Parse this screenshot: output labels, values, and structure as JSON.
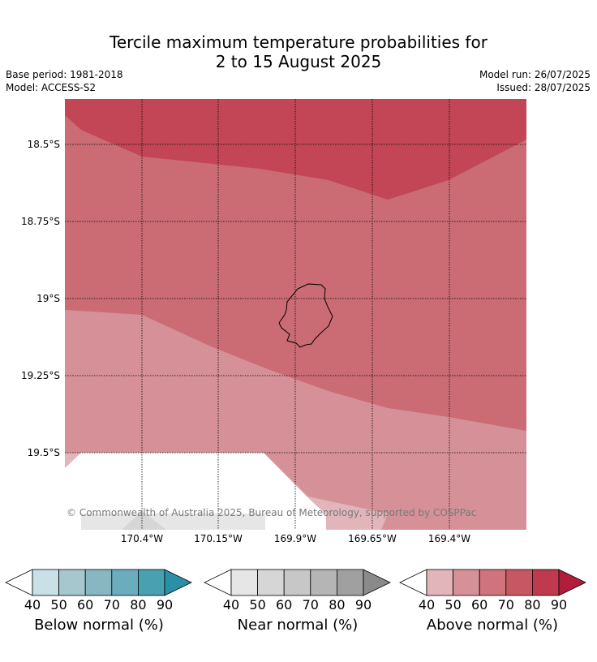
{
  "title_line1": "Tercile maximum temperature probabilities for",
  "title_line2": "2 to 15 August 2025",
  "base_period": "Base period: 1981-2018",
  "model": "Model: ACCESS-S2",
  "model_run": "Model run: 26/07/2025",
  "issued": "Issued: 28/07/2025",
  "copyright": "© Commonwealth of Australia 2025, Bureau of Meteorology, supported by COSPPac",
  "lat_labels": [
    "18.5°S",
    "18.75°S",
    "19°S",
    "19.25°S",
    "19.5°S"
  ],
  "lon_labels": [
    "170.4°W",
    "170.15°W",
    "169.9°W",
    "169.65°W",
    "169.4°W"
  ],
  "legends": [
    {
      "label": "Below normal (%)",
      "ticks": [
        "40",
        "50",
        "60",
        "70",
        "80",
        "90"
      ],
      "colors": [
        "#c9e1e6",
        "#a6c7cd",
        "#88b6c1",
        "#6badbc",
        "#49a0b0",
        "#2a90a6"
      ]
    },
    {
      "label": "Near normal (%)",
      "ticks": [
        "40",
        "50",
        "60",
        "70",
        "80",
        "90"
      ],
      "colors": [
        "#e6e6e6",
        "#d6d6d6",
        "#c7c7c7",
        "#b5b5b5",
        "#a0a0a0",
        "#8a8a8a"
      ]
    },
    {
      "label": "Above normal (%)",
      "ticks": [
        "40",
        "50",
        "60",
        "70",
        "80",
        "90"
      ],
      "colors": [
        "#e2b5ba",
        "#d69097",
        "#d0737c",
        "#c75863",
        "#bf3a4e",
        "#b11e3b"
      ]
    }
  ],
  "colors": {
    "above_80": "#c24655",
    "above_70": "#cb6b74",
    "above_60": "#d69097",
    "above_50": "#e2b5ba",
    "near_50": "#e6e6e6",
    "near_60": "#d6d6d6"
  }
}
